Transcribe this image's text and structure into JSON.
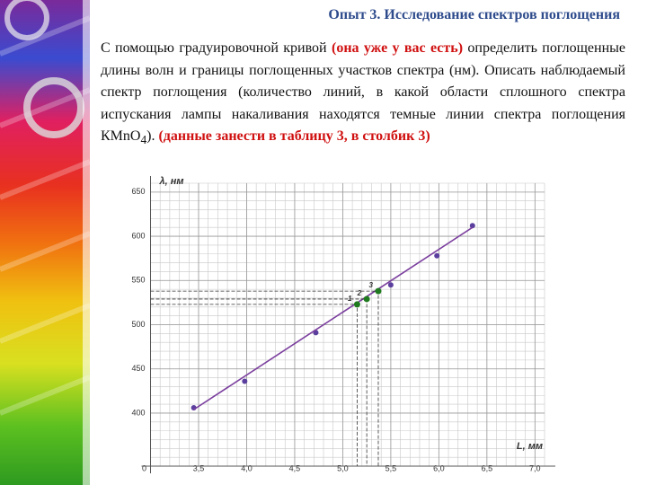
{
  "header": {
    "title": "Опыт 3. Исследование спектров поглощения"
  },
  "paragraph": {
    "text1": "С помощью градуировочной кривой ",
    "red1": "(она уже у вас есть)",
    "text2": " определить поглощенные длины волн и границы поглощенных участков спектра (нм). Описать наблюдаемый спектр поглощения (количество линий, в какой области сплошного спектра испускания лампы накаливания находятся темные линии спектра поглощения КMnO",
    "sub": "4",
    "text3": "). ",
    "red2": "(данные занести в таблицу 3, в столбик 3)"
  },
  "chart_data": {
    "type": "scatter",
    "y_label": "λ, нм",
    "x_label": "L, мм",
    "origin_label": "0",
    "xlim": [
      3.0,
      7.1
    ],
    "ylim": [
      340,
      660
    ],
    "xticks": [
      {
        "value": 3.5,
        "label": "3,5"
      },
      {
        "value": 4.0,
        "label": "4,0"
      },
      {
        "value": 4.5,
        "label": "4,5"
      },
      {
        "value": 5.0,
        "label": "5,0"
      },
      {
        "value": 5.5,
        "label": "5,5"
      },
      {
        "value": 6.0,
        "label": "6,0"
      },
      {
        "value": 6.5,
        "label": "6,5"
      },
      {
        "value": 7.0,
        "label": "7,0"
      }
    ],
    "yticks": [
      400,
      450,
      500,
      550,
      600,
      650
    ],
    "grid": true,
    "series": [
      {
        "kind": "points",
        "color": "#5b3f9e",
        "x": [
          3.45,
          3.98,
          4.72,
          5.5,
          5.98,
          6.35
        ],
        "values": [
          406,
          436,
          491,
          545,
          578,
          612
        ]
      },
      {
        "kind": "line",
        "color": "#7b3f9e",
        "x": [
          3.45,
          6.35
        ],
        "values": [
          404,
          610
        ]
      },
      {
        "kind": "marked",
        "color": "#1f7a1f",
        "labels": [
          "1",
          "2",
          "3"
        ],
        "x": [
          5.15,
          5.25,
          5.37
        ],
        "values": [
          523,
          529,
          538
        ]
      }
    ]
  }
}
